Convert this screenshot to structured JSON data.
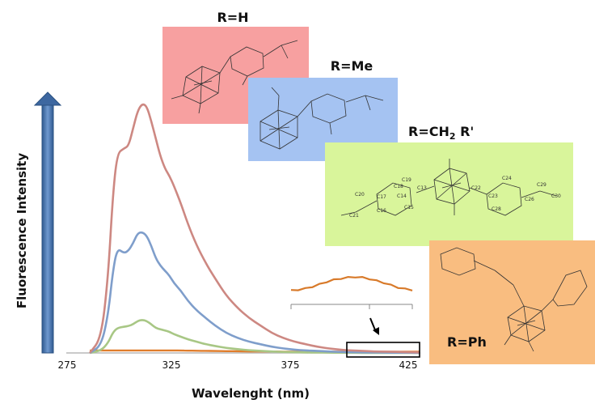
{
  "chart_data": {
    "type": "line",
    "xlabel": "Wavelenght (nm)",
    "ylabel": "Fluorescence Intensity",
    "xlim": [
      275,
      430
    ],
    "ylim": [
      0,
      1
    ],
    "x_ticks": [
      "275",
      "325",
      "375",
      "425"
    ],
    "y_ticks": false,
    "grid": false,
    "x": [
      285,
      290,
      293,
      295,
      297,
      300,
      302,
      304,
      306,
      308,
      310,
      312,
      314,
      316,
      318,
      320,
      322,
      325,
      328,
      332,
      336,
      340,
      345,
      350,
      355,
      360,
      365,
      370,
      375,
      380,
      385,
      390,
      395,
      400,
      405,
      410,
      415,
      420,
      425,
      430
    ],
    "series": [
      {
        "name": "R=H",
        "color": "#cd8882",
        "values": [
          0,
          0.06,
          0.3,
          0.62,
          0.8,
          0.82,
          0.83,
          0.9,
          0.97,
          1.0,
          0.99,
          0.93,
          0.86,
          0.79,
          0.74,
          0.71,
          0.67,
          0.6,
          0.52,
          0.43,
          0.36,
          0.3,
          0.23,
          0.18,
          0.14,
          0.11,
          0.08,
          0.06,
          0.045,
          0.035,
          0.025,
          0.018,
          0.013,
          0.01,
          0.008,
          0.006,
          0.005,
          0.004,
          0.003,
          0.002
        ]
      },
      {
        "name": "R=Me",
        "color": "#7f9ecb",
        "values": [
          0,
          0.03,
          0.15,
          0.32,
          0.42,
          0.4,
          0.41,
          0.44,
          0.48,
          0.485,
          0.47,
          0.43,
          0.38,
          0.35,
          0.33,
          0.31,
          0.28,
          0.25,
          0.21,
          0.17,
          0.14,
          0.11,
          0.08,
          0.06,
          0.045,
          0.035,
          0.025,
          0.018,
          0.013,
          0.01,
          0.008,
          0.006,
          0.004,
          0.003,
          0.002,
          0.002,
          0.001,
          0.001,
          0.001,
          0
        ]
      },
      {
        "name": "R=CH₂R'",
        "color": "#a8c785",
        "values": [
          0,
          0.01,
          0.04,
          0.08,
          0.1,
          0.105,
          0.108,
          0.115,
          0.128,
          0.133,
          0.128,
          0.115,
          0.1,
          0.095,
          0.09,
          0.085,
          0.075,
          0.065,
          0.055,
          0.045,
          0.035,
          0.028,
          0.02,
          0.015,
          0.011,
          0.008,
          0.006,
          0.004,
          0.003,
          0.002,
          0.002,
          0.001,
          0.001,
          0.001,
          0,
          0,
          0,
          0,
          0,
          0
        ]
      },
      {
        "name": "R=Ph",
        "color": "#e07d2c",
        "values": [
          0.01,
          0.01,
          0.01,
          0.01,
          0.01,
          0.01,
          0.01,
          0.01,
          0.01,
          0.01,
          0.01,
          0.01,
          0.01,
          0.01,
          0.01,
          0.01,
          0.01,
          0.01,
          0.009,
          0.009,
          0.008,
          0.008,
          0.007,
          0.007,
          0.006,
          0.006,
          0.006,
          0.005,
          0.005,
          0.005,
          0.005,
          0.005,
          0.005,
          0.005,
          0.005,
          0.005,
          0.005,
          0.005,
          0.005,
          0.005
        ]
      }
    ],
    "inset": {
      "series": "R=Ph",
      "color": "#d87a2a",
      "values": [
        0.3,
        0.34,
        0.4,
        0.5,
        0.62,
        0.75,
        0.85,
        0.92,
        0.97,
        1.0,
        0.97,
        0.9,
        0.8,
        0.7,
        0.58,
        0.46,
        0.38,
        0.33
      ]
    }
  },
  "structures": [
    {
      "label": "R=H",
      "bg": "#f7a0a0"
    },
    {
      "label": "R=Me",
      "bg": "#a5c3f2"
    },
    {
      "label": "R=CH",
      "label_sub": "2",
      "label_tail": " R'",
      "bg": "#d9f59b"
    },
    {
      "label": "R=Ph",
      "bg": "#f9bd80"
    }
  ],
  "colors": {
    "up_arrow": "#4a74aa",
    "axis_line": "#b9b9b9"
  }
}
